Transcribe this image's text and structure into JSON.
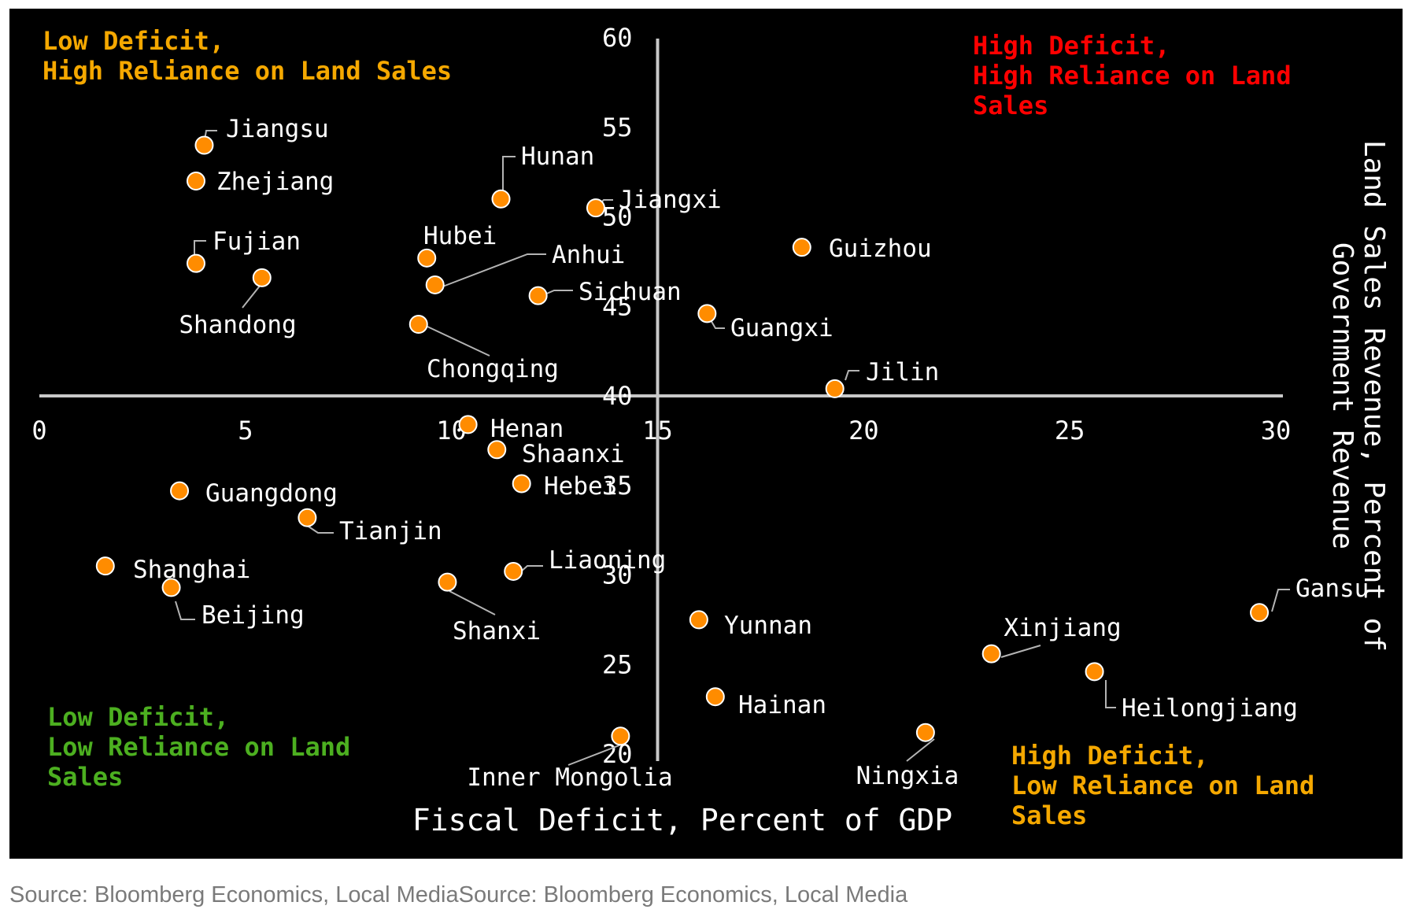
{
  "chart_data": {
    "type": "scatter",
    "xlabel": "Fiscal Deficit, Percent of GDP",
    "ylabel": "Land Sales Revenue, Percent of Government Revenue",
    "xlim": [
      0,
      30
    ],
    "ylim": [
      20,
      60
    ],
    "x_ticks": [
      0,
      5,
      10,
      15,
      20,
      25,
      30
    ],
    "y_ticks": [
      20,
      25,
      30,
      35,
      40,
      45,
      50,
      55,
      60
    ],
    "x_axis_crosses_y": 40,
    "y_axis_crosses_x": 15,
    "grid": false,
    "marker_color": "#ff8c00",
    "quadrant_labels": [
      {
        "id": "top-left",
        "lines": [
          "Low Deficit,",
          "High Reliance on Land Sales"
        ],
        "color": "#f5a800"
      },
      {
        "id": "top-right",
        "lines": [
          "High Deficit,",
          "High Reliance on Land",
          "Sales"
        ],
        "color": "#ff0000"
      },
      {
        "id": "bottom-left",
        "lines": [
          "Low Deficit,",
          "Low Reliance on Land",
          "Sales"
        ],
        "color": "#4caf20"
      },
      {
        "id": "bottom-right",
        "lines": [
          "High Deficit,",
          "Low Reliance on Land",
          "Sales"
        ],
        "color": "#f5a800"
      }
    ],
    "points": [
      {
        "name": "Jiangsu",
        "x": 4.0,
        "y": 54.0
      },
      {
        "name": "Zhejiang",
        "x": 3.8,
        "y": 52.0
      },
      {
        "name": "Hunan",
        "x": 11.2,
        "y": 51.0
      },
      {
        "name": "Jiangxi",
        "x": 13.5,
        "y": 50.5
      },
      {
        "name": "Guizhou",
        "x": 18.5,
        "y": 48.3
      },
      {
        "name": "Fujian",
        "x": 3.8,
        "y": 47.4
      },
      {
        "name": "Hubei",
        "x": 9.4,
        "y": 47.7
      },
      {
        "name": "Shandong",
        "x": 5.4,
        "y": 46.6
      },
      {
        "name": "Anhui",
        "x": 9.6,
        "y": 46.2
      },
      {
        "name": "Sichuan",
        "x": 12.1,
        "y": 45.6
      },
      {
        "name": "Guangxi",
        "x": 16.2,
        "y": 44.6
      },
      {
        "name": "Chongqing",
        "x": 9.2,
        "y": 44.0
      },
      {
        "name": "Jilin",
        "x": 19.3,
        "y": 40.4
      },
      {
        "name": "Henan",
        "x": 10.4,
        "y": 38.4
      },
      {
        "name": "Shaanxi",
        "x": 11.1,
        "y": 37.0
      },
      {
        "name": "Hebei",
        "x": 11.7,
        "y": 35.1
      },
      {
        "name": "Guangdong",
        "x": 3.4,
        "y": 34.7
      },
      {
        "name": "Tianjin",
        "x": 6.5,
        "y": 33.2
      },
      {
        "name": "Shanghai",
        "x": 1.6,
        "y": 30.5
      },
      {
        "name": "Liaoning",
        "x": 11.5,
        "y": 30.2
      },
      {
        "name": "Beijing",
        "x": 3.2,
        "y": 29.3
      },
      {
        "name": "Shanxi",
        "x": 9.9,
        "y": 29.6
      },
      {
        "name": "Gansu",
        "x": 29.6,
        "y": 27.9
      },
      {
        "name": "Yunnan",
        "x": 16.0,
        "y": 27.5
      },
      {
        "name": "Xinjiang",
        "x": 23.1,
        "y": 25.6
      },
      {
        "name": "Heilongjiang",
        "x": 25.6,
        "y": 24.6
      },
      {
        "name": "Hainan",
        "x": 16.4,
        "y": 23.2
      },
      {
        "name": "Ningxia",
        "x": 21.5,
        "y": 21.2
      },
      {
        "name": "Inner Mongolia",
        "x": 14.1,
        "y": 21.0
      }
    ]
  },
  "source_text": [
    "Source: Bloomberg Economics, Local Media",
    "Source: Bloomberg Economics, Local Media"
  ]
}
